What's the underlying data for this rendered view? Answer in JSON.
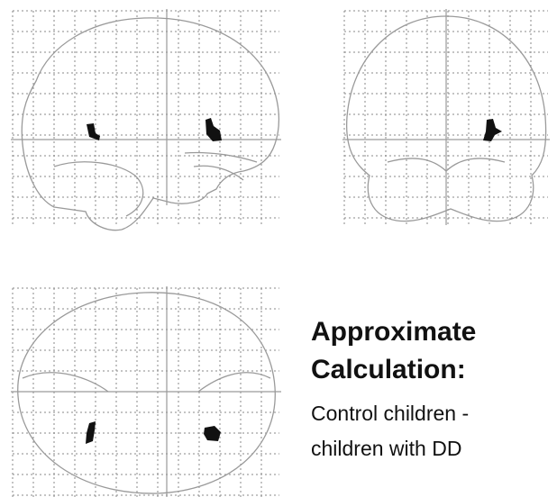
{
  "caption": {
    "title_lines": [
      "Approximate",
      "Calculation:"
    ],
    "lines": [
      "Control children -",
      "children with DD"
    ]
  }
}
